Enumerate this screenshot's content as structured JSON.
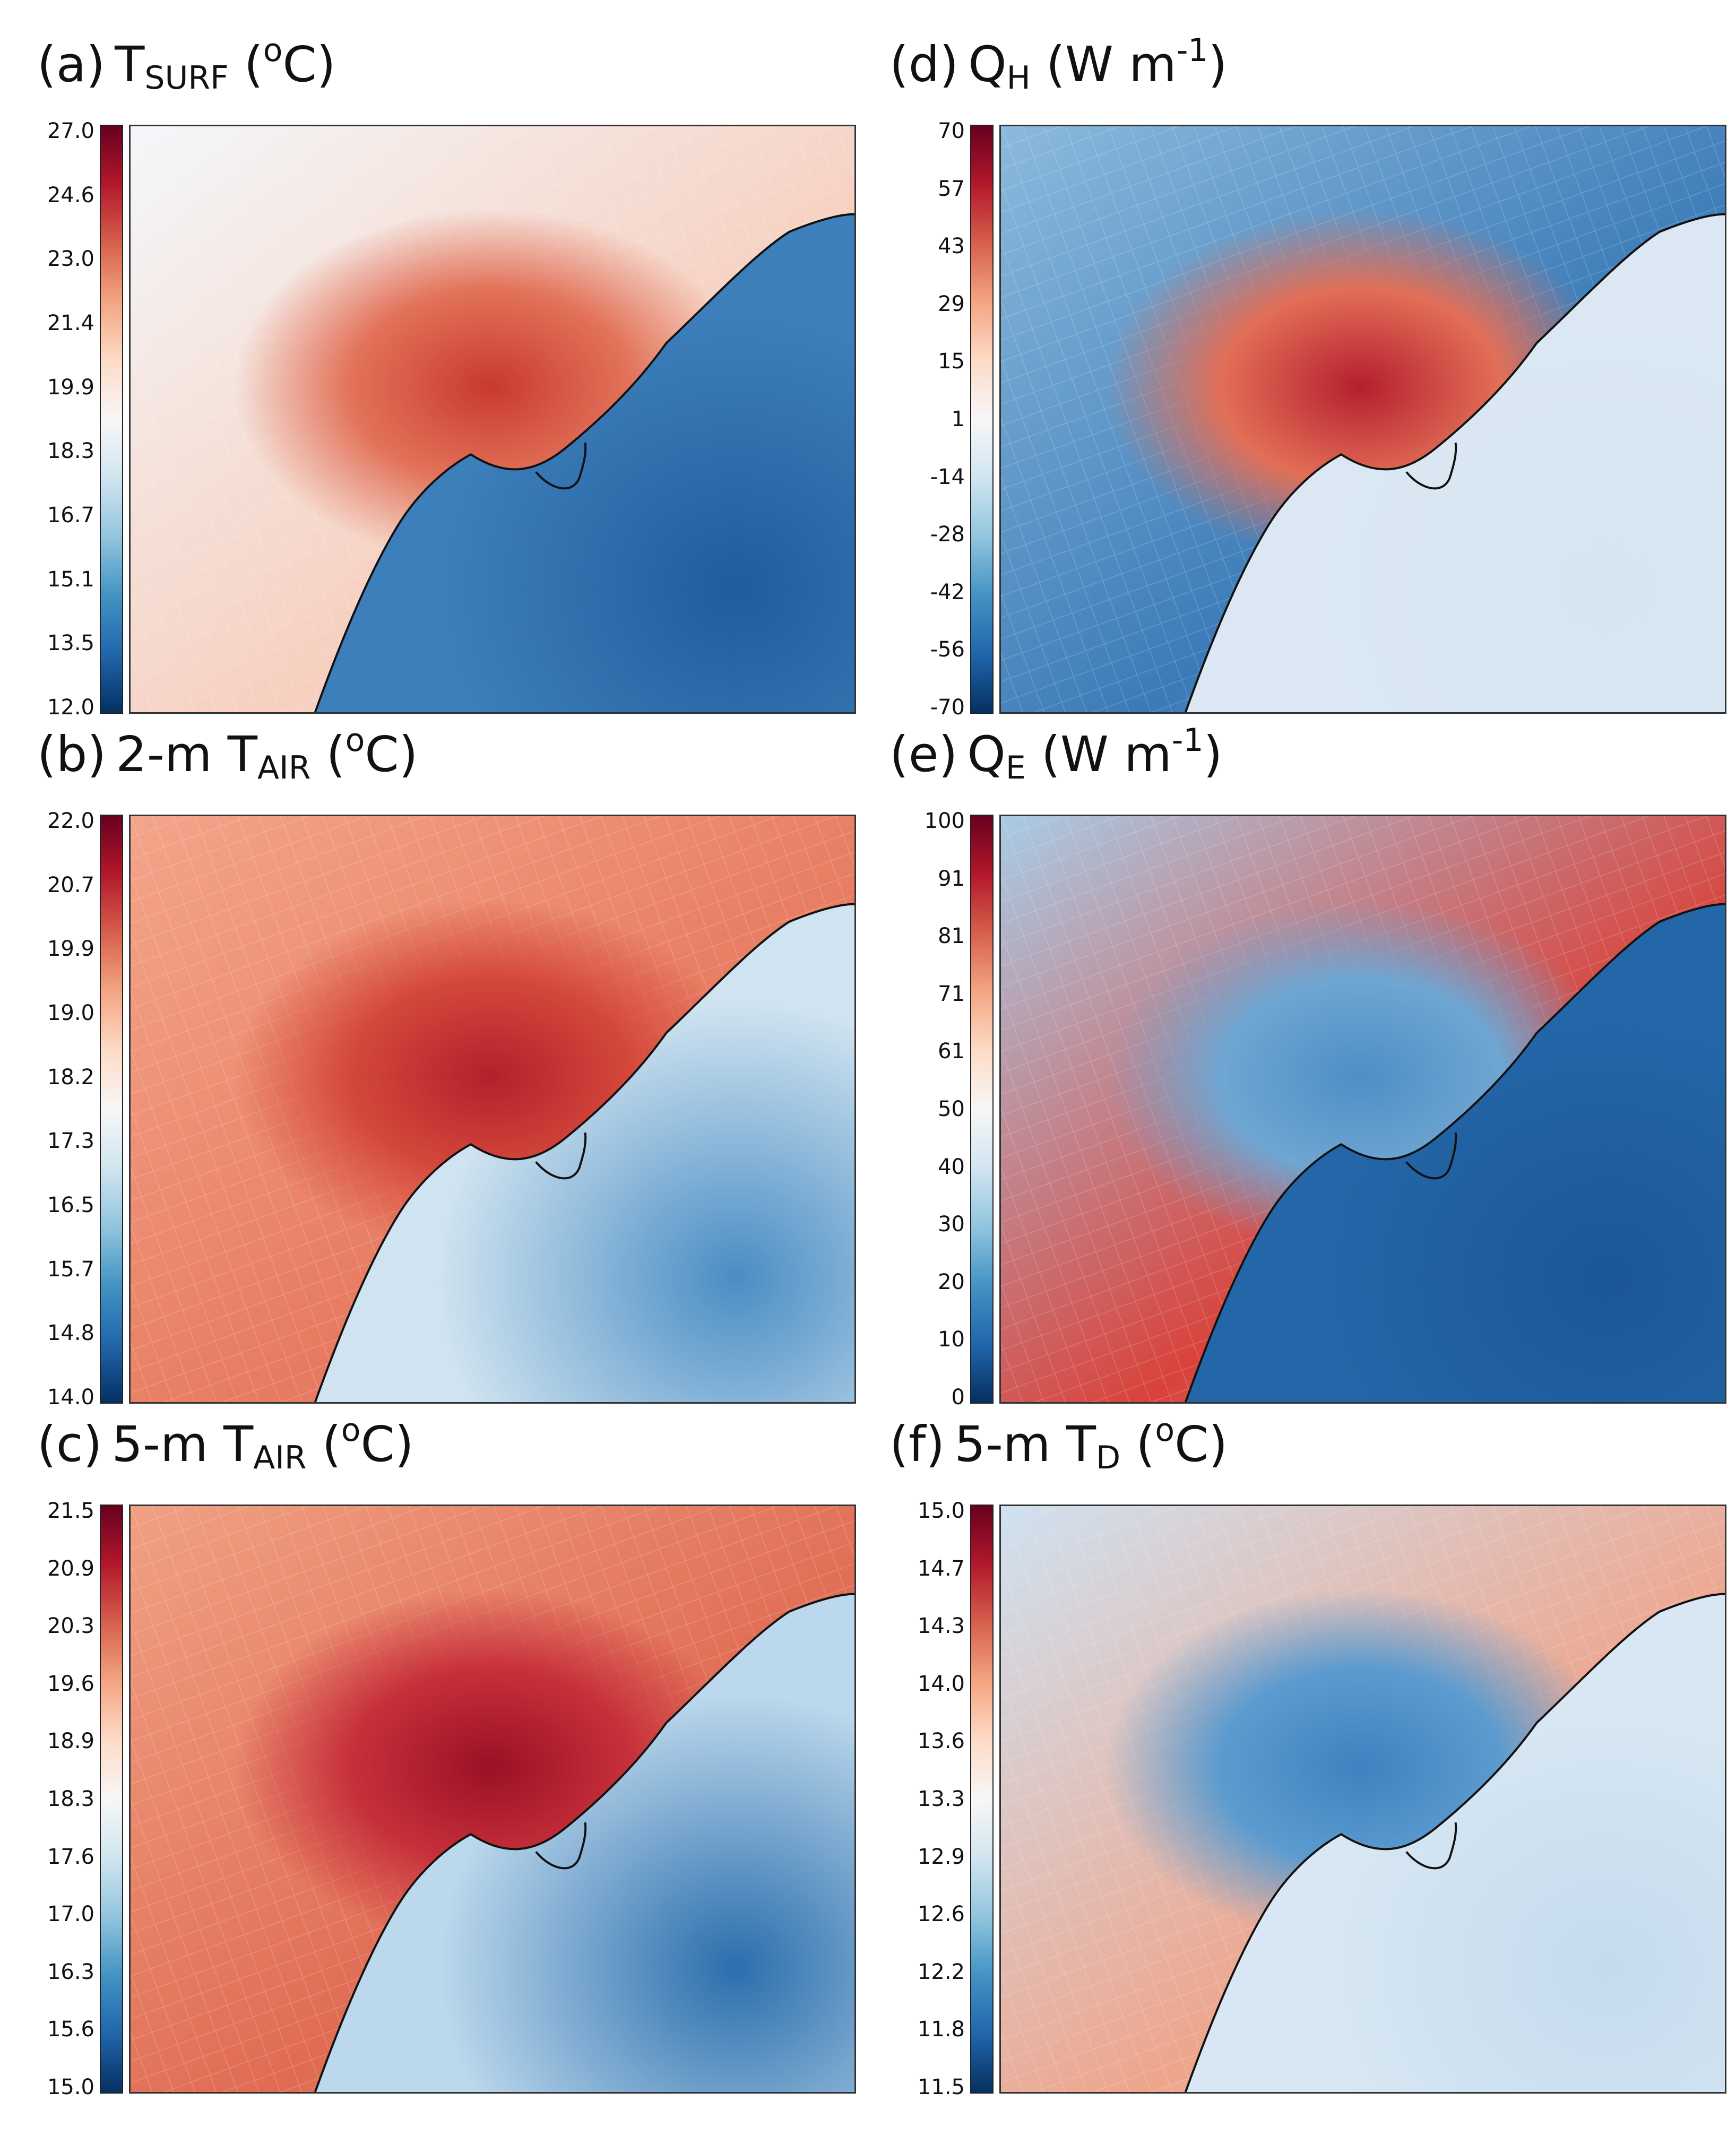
{
  "figure": {
    "panels": [
      {
        "id": "a",
        "letter": "(a)",
        "var": "T",
        "sub": "SURF",
        "sup": "",
        "pre": "",
        "unit_open": " (",
        "unit_sup": "o",
        "unit_close": "C)",
        "ticks": [
          "27.0",
          "24.6",
          "23.0",
          "21.4",
          "19.9",
          "18.3",
          "16.7",
          "15.1",
          "13.5",
          "12.0"
        ],
        "land": "#f4f7fa",
        "land2": "#f6cfbf",
        "urban": "#e2735a",
        "urban_core": "#c9392f",
        "lake": "#3d7fbb",
        "lake_deep": "#1e5d9c"
      },
      {
        "id": "b",
        "letter": "(b)",
        "pre": "2-m ",
        "var": "T",
        "sub": "AIR",
        "sup": "",
        "unit_open": " (",
        "unit_sup": "o",
        "unit_close": "C)",
        "ticks": [
          "22.0",
          "20.7",
          "19.9",
          "19.0",
          "18.2",
          "17.3",
          "16.5",
          "15.7",
          "14.8",
          "14.0"
        ],
        "land": "#f3a58a",
        "land2": "#e77a60",
        "urban": "#d4483b",
        "urban_core": "#b3202c",
        "lake": "#cfe3f0",
        "lake_deep": "#4a8dc4"
      },
      {
        "id": "c",
        "letter": "(c)",
        "pre": "5-m ",
        "var": "T",
        "sub": "AIR",
        "sup": "",
        "unit_open": " (",
        "unit_sup": "o",
        "unit_close": "C)",
        "ticks": [
          "21.5",
          "20.9",
          "20.3",
          "19.6",
          "18.9",
          "18.3",
          "17.6",
          "17.0",
          "16.3",
          "15.6",
          "15.0"
        ],
        "land": "#f0a083",
        "land2": "#e06b53",
        "urban": "#c7303a",
        "urban_core": "#9b1026",
        "lake": "#bcd8ec",
        "lake_deep": "#2b6ead"
      },
      {
        "id": "d",
        "letter": "(d)",
        "pre": "",
        "var": "Q",
        "sub": "H",
        "sup": "",
        "unit_open": " (W m",
        "unit_sup": "-1",
        "unit_close": ")",
        "ticks": [
          "70",
          "57",
          "43",
          "29",
          "15",
          "1",
          "-14",
          "-28",
          "-42",
          "-56",
          "-70"
        ],
        "land": "#8cbadc",
        "land2": "#3a7ab8",
        "urban": "#e26f57",
        "urban_core": "#b51f2e",
        "lake": "#dbe8f3",
        "lake_deep": "#d6e5f1"
      },
      {
        "id": "e",
        "letter": "(e)",
        "pre": "",
        "var": "Q",
        "sub": "E",
        "sup": "",
        "unit_open": " (W m",
        "unit_sup": "-1",
        "unit_close": ")",
        "ticks": [
          "100",
          "91",
          "81",
          "71",
          "61",
          "50",
          "40",
          "30",
          "20",
          "10",
          "0"
        ],
        "land": "#a9cbe5",
        "land2": "#d9423a",
        "urban": "#6fa6d2",
        "urban_core": "#4d8ec6",
        "lake": "#2467a8",
        "lake_deep": "#1b5797"
      },
      {
        "id": "f",
        "letter": "(f)",
        "pre": "5-m ",
        "var": "T",
        "sub": "D",
        "sup": "",
        "unit_open": " (",
        "unit_sup": "o",
        "unit_close": "C)",
        "ticks": [
          "15.0",
          "14.7",
          "14.3",
          "14.0",
          "13.6",
          "13.3",
          "12.9",
          "12.6",
          "12.2",
          "11.8",
          "11.5"
        ],
        "land": "#cfe1f0",
        "land2": "#eea58c",
        "urban": "#5b9bcf",
        "urban_core": "#3f82c0",
        "lake": "#d8e7f3",
        "lake_deep": "#c4dbee"
      }
    ]
  }
}
